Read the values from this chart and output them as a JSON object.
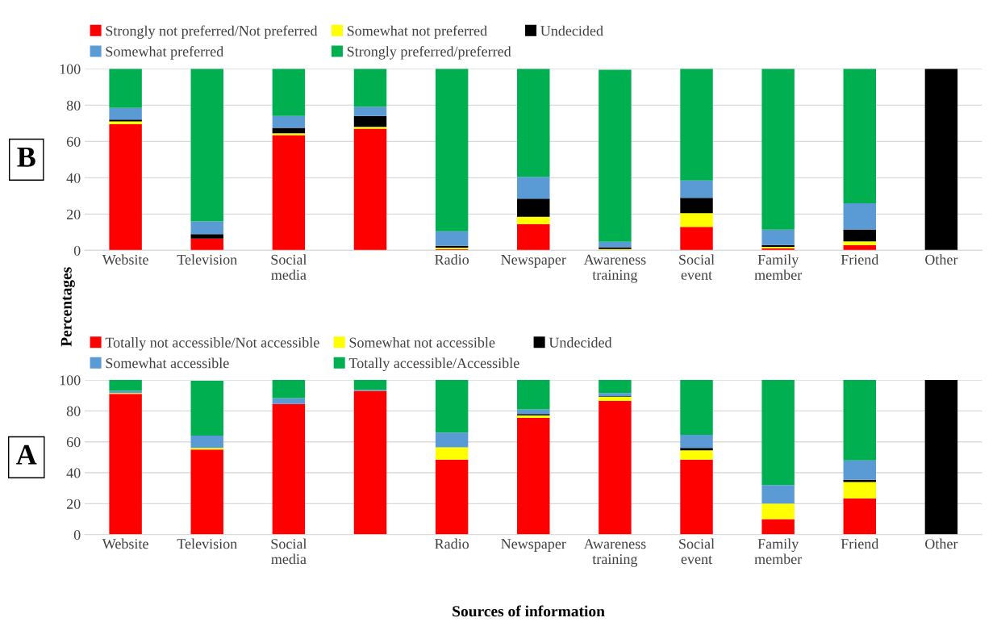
{
  "chart_data": [
    {
      "type": "bar",
      "stacked": true,
      "categories": [
        "Website",
        "Television",
        "Social\nmedia",
        null,
        "Radio",
        "Newspaper",
        "Awareness\ntraining",
        "Social\nevent",
        "Family\nmember",
        "Friend",
        "Other"
      ],
      "series": [
        {
          "name": "Strongly not preferred/Not preferred",
          "color": "#ff0000",
          "values": [
            69.5,
            6.5,
            63.5,
            67,
            0.7,
            14.5,
            null,
            13,
            1.2,
            3,
            0
          ]
        },
        {
          "name": "Somewhat not preferred",
          "color": "#ffff00",
          "values": [
            1.5,
            0,
            1,
            1,
            0.8,
            4,
            0.7,
            7.5,
            0.7,
            2,
            0
          ]
        },
        {
          "name": "Undecided",
          "color": "#000000",
          "values": [
            1,
            2.5,
            3,
            6,
            1,
            10,
            1,
            8.5,
            1,
            6.5,
            100
          ]
        },
        {
          "name": "Somewhat preferred",
          "color": "#5b9bd5",
          "values": [
            6.5,
            7,
            6.5,
            5,
            8,
            12,
            3,
            9.5,
            8.5,
            14.5,
            0
          ]
        },
        {
          "name": "Strongly preferred/preferred",
          "color": "#00b050",
          "values": [
            21.5,
            84,
            26,
            21,
            89.5,
            59.5,
            94.8,
            61.5,
            88.6,
            74,
            0
          ]
        }
      ],
      "ylim": [
        0,
        100
      ],
      "yticks": [
        0,
        20,
        40,
        60,
        80,
        100
      ],
      "grid": "y",
      "legend": "top",
      "annotations": [
        "B"
      ]
    },
    {
      "type": "bar",
      "stacked": true,
      "categories": [
        "Website",
        "Television",
        "Social\nmedia",
        null,
        "Radio",
        "Newspaper",
        "Awareness\ntraining",
        "Social\nevent",
        "Family\nmember",
        "Friend",
        "Other"
      ],
      "series": [
        {
          "name": "Totally not accessible/Not accessible",
          "color": "#ff0000",
          "values": [
            91,
            55,
            84.5,
            93,
            48.5,
            75.5,
            86.5,
            48.5,
            10,
            23.5,
            0
          ]
        },
        {
          "name": "Somewhat not accessible",
          "color": "#ffff00",
          "values": [
            0.5,
            1,
            0,
            0,
            8,
            1.5,
            2.5,
            6,
            10,
            10.5,
            0
          ]
        },
        {
          "name": "Undecided",
          "color": "#000000",
          "values": [
            0,
            null,
            0,
            0,
            0,
            1,
            0.5,
            1.5,
            0,
            1.5,
            100
          ]
        },
        {
          "name": "Somewhat accessible",
          "color": "#5b9bd5",
          "values": [
            1.5,
            8,
            3.8,
            0.6,
            9.5,
            3,
            2,
            8.5,
            12,
            12.5,
            0
          ]
        },
        {
          "name": "Totally accessible/Accessible",
          "color": "#00b050",
          "values": [
            7,
            35.5,
            11.7,
            6.4,
            34,
            19,
            8.5,
            35.5,
            68,
            52,
            0
          ]
        }
      ],
      "ylim": [
        0,
        100
      ],
      "yticks": [
        0,
        20,
        40,
        60,
        80,
        100
      ],
      "grid": "y",
      "legend": "top",
      "annotations": [
        "A"
      ],
      "xlabel": "Sources of information",
      "ylabel": "Percentages"
    }
  ]
}
